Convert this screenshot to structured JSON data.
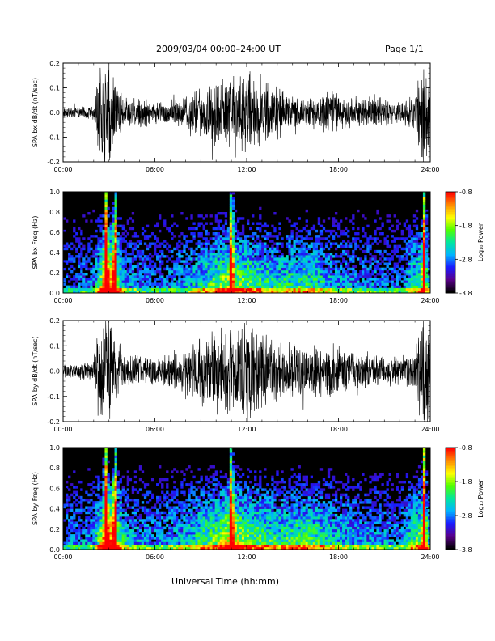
{
  "header": {
    "title": "2009/03/04  00:00–24:00 UT",
    "page": "Page 1/1",
    "xlabel": "Universal Time (hh:mm)"
  },
  "colors": {
    "waveform": "#000000",
    "spectrogram_background": "#000000",
    "colormap": [
      "#000000",
      "#5a008a",
      "#1a1aff",
      "#00b4ff",
      "#00e6a0",
      "#50ff00",
      "#ffff00",
      "#ff8c00",
      "#ff0000"
    ]
  },
  "chart_data": [
    {
      "type": "line",
      "ylabel": "SPA bx dB/dt (nT/sec)",
      "x_ticks": [
        "00:00",
        "06:00",
        "12:00",
        "18:00",
        "24:00"
      ],
      "y_ticks": [
        "-0.2",
        "-0.1",
        "0.0",
        "0.1",
        "0.2"
      ],
      "xlim_hours": [
        0,
        24
      ],
      "ylim": [
        -0.2,
        0.2
      ],
      "envelope": {
        "x_hours": [
          0,
          1,
          2,
          2.3,
          2.6,
          3.0,
          3.5,
          4.0,
          5.0,
          6.0,
          7.0,
          8.0,
          9.0,
          10.0,
          11.0,
          12.0,
          13.0,
          14.0,
          15.0,
          16.0,
          17.0,
          18.0,
          19.0,
          20.0,
          21.0,
          22.0,
          23.0,
          23.5,
          24.0
        ],
        "amplitude": [
          0.02,
          0.02,
          0.03,
          0.15,
          0.2,
          0.2,
          0.12,
          0.05,
          0.06,
          0.04,
          0.05,
          0.06,
          0.1,
          0.13,
          0.15,
          0.16,
          0.12,
          0.1,
          0.06,
          0.05,
          0.08,
          0.07,
          0.06,
          0.06,
          0.05,
          0.04,
          0.06,
          0.2,
          0.2
        ]
      }
    },
    {
      "type": "heatmap",
      "ylabel": "SPA bx Freq (Hz)",
      "x_ticks": [
        "00:00",
        "06:00",
        "12:00",
        "18:00",
        "24:00"
      ],
      "y_ticks": [
        "0.0",
        "0.2",
        "0.4",
        "0.6",
        "0.8",
        "1.0"
      ],
      "xlim_hours": [
        0,
        24
      ],
      "ylim": [
        0,
        1.0
      ],
      "colorbar": {
        "label": "Log₁₀ Power",
        "ticks": [
          "-0.8",
          "-1.8",
          "-2.8",
          "-3.8"
        ],
        "range": [
          -3.8,
          -0.8
        ]
      },
      "activity_hours": [
        0,
        2,
        3,
        4,
        6,
        8,
        10,
        11,
        12,
        14,
        16,
        18,
        20,
        22,
        23.5,
        24
      ],
      "activity_level": [
        0.2,
        0.3,
        0.95,
        0.35,
        0.25,
        0.35,
        0.55,
        0.7,
        0.55,
        0.45,
        0.5,
        0.35,
        0.3,
        0.25,
        0.6,
        0.35
      ],
      "bright_bands_hours": [
        2.8,
        3.4,
        11.0,
        23.6
      ]
    },
    {
      "type": "line",
      "ylabel": "SPA by dB/dt (nT/sec)",
      "x_ticks": [
        "00:00",
        "06:00",
        "12:00",
        "18:00",
        "24:00"
      ],
      "y_ticks": [
        "-0.2",
        "-0.1",
        "0.0",
        "0.1",
        "0.2"
      ],
      "xlim_hours": [
        0,
        24
      ],
      "ylim": [
        -0.2,
        0.2
      ],
      "envelope": {
        "x_hours": [
          0,
          1,
          2,
          2.3,
          2.6,
          3.0,
          3.5,
          4.0,
          5.0,
          6.0,
          7.0,
          8.0,
          9.0,
          10.0,
          11.0,
          12.0,
          13.0,
          14.0,
          15.0,
          16.0,
          17.0,
          18.0,
          19.0,
          20.0,
          21.0,
          22.0,
          23.0,
          23.5,
          24.0
        ],
        "amplitude": [
          0.03,
          0.03,
          0.04,
          0.16,
          0.2,
          0.2,
          0.14,
          0.06,
          0.06,
          0.05,
          0.06,
          0.08,
          0.12,
          0.15,
          0.17,
          0.18,
          0.13,
          0.12,
          0.1,
          0.09,
          0.1,
          0.09,
          0.07,
          0.07,
          0.06,
          0.05,
          0.07,
          0.2,
          0.2
        ]
      }
    },
    {
      "type": "heatmap",
      "ylabel": "SPA by Freq (Hz)",
      "x_ticks": [
        "00:00",
        "06:00",
        "12:00",
        "18:00",
        "24:00"
      ],
      "y_ticks": [
        "0.0",
        "0.2",
        "0.4",
        "0.6",
        "0.8",
        "1.0"
      ],
      "xlim_hours": [
        0,
        24
      ],
      "ylim": [
        0,
        1.0
      ],
      "colorbar": {
        "label": "Log₁₀ Power",
        "ticks": [
          "-0.8",
          "-1.8",
          "-2.8",
          "-3.8"
        ],
        "range": [
          -3.8,
          -0.8
        ]
      },
      "activity_hours": [
        0,
        2,
        3,
        4,
        6,
        8,
        10,
        11,
        12,
        14,
        16,
        18,
        20,
        22,
        23.5,
        24
      ],
      "activity_level": [
        0.25,
        0.35,
        1.0,
        0.4,
        0.3,
        0.4,
        0.6,
        0.75,
        0.6,
        0.5,
        0.55,
        0.4,
        0.35,
        0.3,
        0.65,
        0.4
      ],
      "bright_bands_hours": [
        2.8,
        3.4,
        11.0,
        23.6
      ]
    }
  ]
}
